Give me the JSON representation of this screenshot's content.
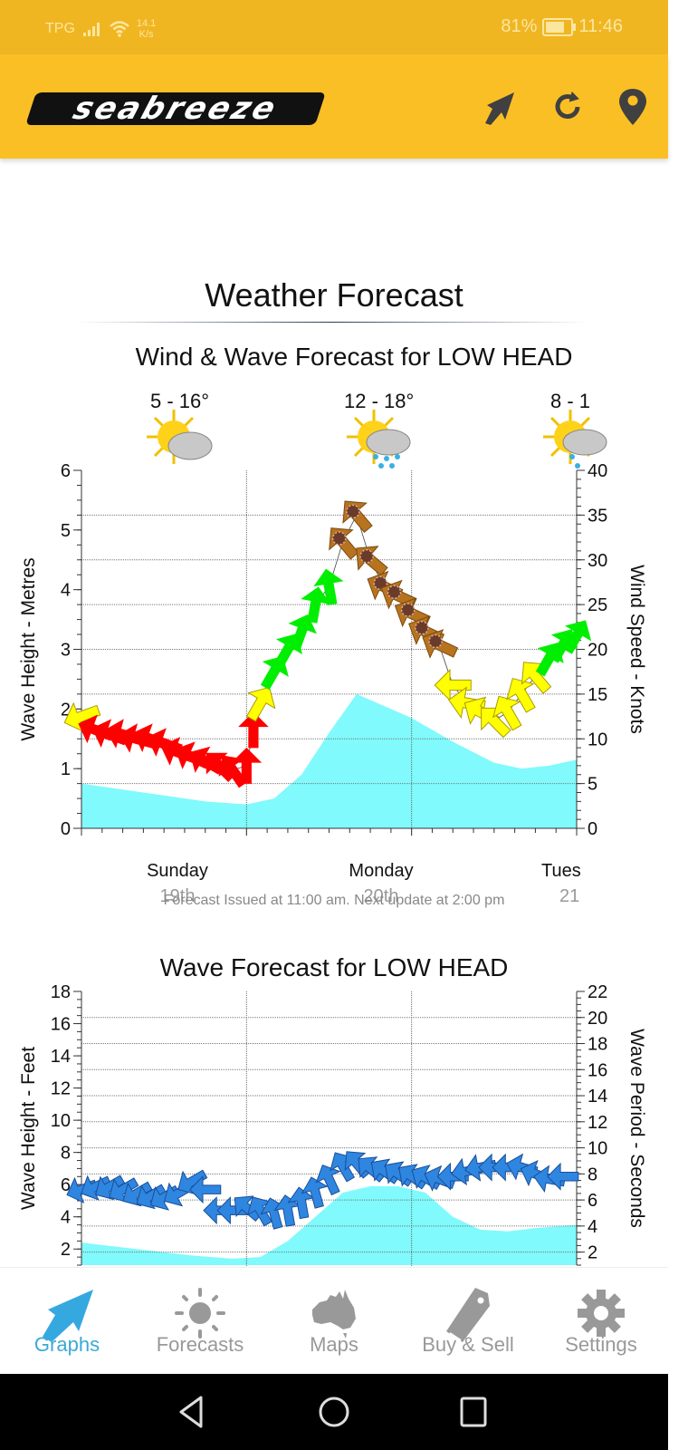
{
  "status_bar": {
    "carrier": "TPG",
    "net_speed_value": "14.1",
    "net_speed_unit": "K/s",
    "battery": "81%",
    "battery_level": 0.81,
    "time": "11:46"
  },
  "app_bar": {
    "logo": "seabreeze",
    "icons": [
      "wind-arrow-icon",
      "refresh-icon",
      "location-pin-icon"
    ]
  },
  "page": {
    "title": "Weather Forecast",
    "wind_wave_title": "Wind & Wave Forecast for LOW HEAD",
    "days": [
      {
        "temp": "5 - 16°",
        "condition": "partly-cloudy",
        "day": "Sunday",
        "date": "19th"
      },
      {
        "temp": "12 - 18°",
        "condition": "showers",
        "day": "Monday",
        "date": "20th"
      },
      {
        "temp": "8 - 1",
        "condition": "showers",
        "day": "Tues",
        "date": "21"
      }
    ],
    "issued_text": "Forecast Issued at 11:00 am. Next update at 2:00 pm",
    "wave_title": "Wave Forecast for LOW HEAD"
  },
  "chart_data": [
    {
      "type": "area",
      "title": "Wind & Wave Forecast for LOW HEAD",
      "ylabel": "Wave Height - Metres",
      "y2label": "Wind Speed - Knots",
      "ylim": [
        0,
        6
      ],
      "y2lim": [
        0,
        40
      ],
      "yticks": [
        0,
        1,
        2,
        3,
        4,
        5,
        6
      ],
      "y2ticks": [
        0,
        5,
        10,
        15,
        20,
        25,
        30,
        35,
        40
      ],
      "x_hours": [
        0,
        6,
        12,
        18,
        24,
        30,
        36,
        42,
        48,
        54,
        60,
        66,
        72
      ],
      "xlim": [
        0,
        72
      ],
      "grid": true,
      "wave_height_m": [
        [
          0,
          0.75
        ],
        [
          6,
          0.65
        ],
        [
          12,
          0.55
        ],
        [
          18,
          0.45
        ],
        [
          24,
          0.4
        ],
        [
          28,
          0.5
        ],
        [
          32,
          0.9
        ],
        [
          36,
          1.6
        ],
        [
          40,
          2.25
        ],
        [
          44,
          2.05
        ],
        [
          48,
          1.85
        ],
        [
          54,
          1.45
        ],
        [
          60,
          1.1
        ],
        [
          64,
          1.0
        ],
        [
          68,
          1.05
        ],
        [
          72,
          1.15
        ]
      ],
      "wind_series": {
        "name": "Wind speed (knots) with direction",
        "points": [
          {
            "h": 0,
            "kt": 12.5,
            "dir_deg": 70,
            "color": "#ffff00"
          },
          {
            "h": 2,
            "kt": 11,
            "dir_deg": 110,
            "color": "#ff0000"
          },
          {
            "h": 4,
            "kt": 10.5,
            "dir_deg": 110,
            "color": "#ff0000"
          },
          {
            "h": 6,
            "kt": 10.5,
            "dir_deg": 105,
            "color": "#ff0000"
          },
          {
            "h": 8,
            "kt": 10,
            "dir_deg": 105,
            "color": "#ff0000"
          },
          {
            "h": 10,
            "kt": 10,
            "dir_deg": 110,
            "color": "#ff0000"
          },
          {
            "h": 12,
            "kt": 9.5,
            "dir_deg": 110,
            "color": "#ff0000"
          },
          {
            "h": 14,
            "kt": 8.5,
            "dir_deg": 110,
            "color": "#ff0000"
          },
          {
            "h": 16,
            "kt": 8,
            "dir_deg": 115,
            "color": "#ff0000"
          },
          {
            "h": 18,
            "kt": 7.5,
            "dir_deg": 120,
            "color": "#ff0000"
          },
          {
            "h": 20,
            "kt": 7,
            "dir_deg": 135,
            "color": "#ff0000"
          },
          {
            "h": 22,
            "kt": 6.5,
            "dir_deg": 145,
            "color": "#ff0000"
          },
          {
            "h": 24,
            "kt": 7,
            "dir_deg": 180,
            "color": "#ff0000"
          },
          {
            "h": 25,
            "kt": 11,
            "dir_deg": 180,
            "color": "#ff0000"
          },
          {
            "h": 26,
            "kt": 14,
            "dir_deg": 210,
            "color": "#ffff00"
          },
          {
            "h": 28,
            "kt": 17.5,
            "dir_deg": 210,
            "color": "#00ee00"
          },
          {
            "h": 30,
            "kt": 20,
            "dir_deg": 210,
            "color": "#00ee00"
          },
          {
            "h": 32,
            "kt": 22,
            "dir_deg": 200,
            "color": "#00ee00"
          },
          {
            "h": 34,
            "kt": 25,
            "dir_deg": 190,
            "color": "#00ee00"
          },
          {
            "h": 36,
            "kt": 27,
            "dir_deg": 170,
            "color": "#00ee00"
          },
          {
            "h": 38,
            "kt": 32,
            "dir_deg": 140,
            "color": "#b8731f"
          },
          {
            "h": 40,
            "kt": 35,
            "dir_deg": 140,
            "color": "#b8731f"
          },
          {
            "h": 42,
            "kt": 30,
            "dir_deg": 130,
            "color": "#b8731f"
          },
          {
            "h": 44,
            "kt": 27,
            "dir_deg": 115,
            "color": "#b8731f"
          },
          {
            "h": 46,
            "kt": 26,
            "dir_deg": 115,
            "color": "#b8731f"
          },
          {
            "h": 48,
            "kt": 24,
            "dir_deg": 115,
            "color": "#b8731f"
          },
          {
            "h": 50,
            "kt": 22,
            "dir_deg": 115,
            "color": "#b8731f"
          },
          {
            "h": 52,
            "kt": 20.5,
            "dir_deg": 115,
            "color": "#b8731f"
          },
          {
            "h": 54,
            "kt": 16,
            "dir_deg": 90,
            "color": "#ffff00"
          },
          {
            "h": 56,
            "kt": 14,
            "dir_deg": 100,
            "color": "#ffff00"
          },
          {
            "h": 58,
            "kt": 13,
            "dir_deg": 120,
            "color": "#ffff00"
          },
          {
            "h": 60,
            "kt": 12,
            "dir_deg": 135,
            "color": "#ffff00"
          },
          {
            "h": 62,
            "kt": 13,
            "dir_deg": 150,
            "color": "#ffff00"
          },
          {
            "h": 64,
            "kt": 15,
            "dir_deg": 150,
            "color": "#ffff00"
          },
          {
            "h": 66,
            "kt": 17,
            "dir_deg": 140,
            "color": "#ffff00"
          },
          {
            "h": 68,
            "kt": 19,
            "dir_deg": 210,
            "color": "#00ee00"
          },
          {
            "h": 70,
            "kt": 20.5,
            "dir_deg": 210,
            "color": "#00ee00"
          },
          {
            "h": 72,
            "kt": 21.5,
            "dir_deg": 210,
            "color": "#00ee00"
          }
        ]
      },
      "day_labels": [
        "Sunday 19th",
        "Monday 20th",
        "Tues 21"
      ]
    },
    {
      "type": "area",
      "title": "Wave Forecast for LOW HEAD",
      "ylabel": "Wave Height - Feet",
      "y2label": "Wave Period - Seconds",
      "ylim": [
        1,
        18
      ],
      "y2lim": [
        1,
        22
      ],
      "yticks": [
        2,
        4,
        6,
        8,
        10,
        12,
        14,
        16,
        18
      ],
      "y2ticks": [
        2,
        4,
        6,
        8,
        10,
        12,
        14,
        16,
        18,
        20,
        22
      ],
      "xlim": [
        0,
        72
      ],
      "grid": true,
      "wave_height_ft": [
        [
          0,
          2.4
        ],
        [
          8,
          2.0
        ],
        [
          16,
          1.6
        ],
        [
          22,
          1.4
        ],
        [
          26,
          1.5
        ],
        [
          30,
          2.5
        ],
        [
          34,
          4.0
        ],
        [
          38,
          5.5
        ],
        [
          42,
          5.9
        ],
        [
          46,
          5.9
        ],
        [
          50,
          5.5
        ],
        [
          54,
          4.0
        ],
        [
          58,
          3.2
        ],
        [
          62,
          3.1
        ],
        [
          66,
          3.3
        ],
        [
          72,
          3.5
        ]
      ],
      "swell_series": {
        "name": "Wave period (seconds) with direction",
        "points": [
          {
            "h": 0,
            "s": 6.8,
            "dir_deg": 70
          },
          {
            "h": 2,
            "s": 7.0,
            "dir_deg": 65
          },
          {
            "h": 4,
            "s": 7.0,
            "dir_deg": 60
          },
          {
            "h": 6,
            "s": 6.8,
            "dir_deg": 60
          },
          {
            "h": 8,
            "s": 6.5,
            "dir_deg": 60
          },
          {
            "h": 10,
            "s": 6.3,
            "dir_deg": 60
          },
          {
            "h": 12,
            "s": 6.2,
            "dir_deg": 60
          },
          {
            "h": 14,
            "s": 6.5,
            "dir_deg": 60
          },
          {
            "h": 16,
            "s": 7.4,
            "dir_deg": 60
          },
          {
            "h": 18,
            "s": 6.8,
            "dir_deg": 90
          },
          {
            "h": 20,
            "s": 5.2,
            "dir_deg": 90
          },
          {
            "h": 22,
            "s": 5.2,
            "dir_deg": 90
          },
          {
            "h": 24,
            "s": 5.4,
            "dir_deg": 130
          },
          {
            "h": 26,
            "s": 5.2,
            "dir_deg": 150
          },
          {
            "h": 28,
            "s": 5.0,
            "dir_deg": 165
          },
          {
            "h": 30,
            "s": 5.2,
            "dir_deg": 170
          },
          {
            "h": 32,
            "s": 5.8,
            "dir_deg": 170
          },
          {
            "h": 34,
            "s": 6.6,
            "dir_deg": 165
          },
          {
            "h": 36,
            "s": 7.6,
            "dir_deg": 155
          },
          {
            "h": 38,
            "s": 8.6,
            "dir_deg": 150
          },
          {
            "h": 40,
            "s": 8.8,
            "dir_deg": 140
          },
          {
            "h": 42,
            "s": 8.4,
            "dir_deg": 130
          },
          {
            "h": 44,
            "s": 8.2,
            "dir_deg": 125
          },
          {
            "h": 46,
            "s": 8.0,
            "dir_deg": 125
          },
          {
            "h": 48,
            "s": 7.8,
            "dir_deg": 125
          },
          {
            "h": 50,
            "s": 7.7,
            "dir_deg": 120
          },
          {
            "h": 52,
            "s": 7.6,
            "dir_deg": 110
          },
          {
            "h": 54,
            "s": 7.8,
            "dir_deg": 90
          },
          {
            "h": 56,
            "s": 8.2,
            "dir_deg": 80
          },
          {
            "h": 58,
            "s": 8.5,
            "dir_deg": 80
          },
          {
            "h": 60,
            "s": 8.5,
            "dir_deg": 90
          },
          {
            "h": 62,
            "s": 8.5,
            "dir_deg": 90
          },
          {
            "h": 64,
            "s": 8.5,
            "dir_deg": 105
          },
          {
            "h": 66,
            "s": 8.0,
            "dir_deg": 110
          },
          {
            "h": 68,
            "s": 7.6,
            "dir_deg": 100
          },
          {
            "h": 70,
            "s": 7.8,
            "dir_deg": 90
          }
        ],
        "color": "#2f86e0"
      }
    }
  ],
  "tab_bar": {
    "tabs": [
      {
        "label": "Graphs",
        "icon": "wind-arrow-icon",
        "active": true
      },
      {
        "label": "Forecasts",
        "icon": "sun-icon",
        "active": false
      },
      {
        "label": "Maps",
        "icon": "australia-map-icon",
        "active": false
      },
      {
        "label": "Buy & Sell",
        "icon": "price-tag-icon",
        "active": false
      },
      {
        "label": "Settings",
        "icon": "gear-icon",
        "active": false
      }
    ]
  },
  "nav_bar": {
    "buttons": [
      "back-icon",
      "home-icon",
      "recents-icon"
    ]
  }
}
